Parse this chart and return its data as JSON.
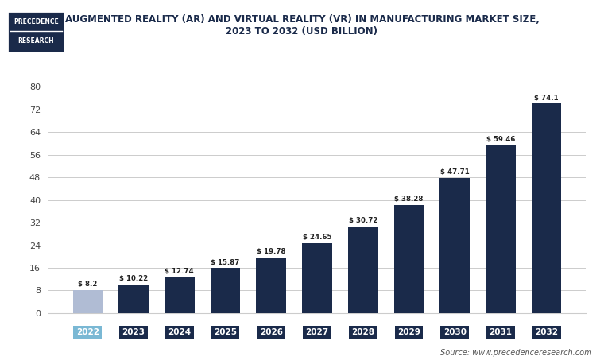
{
  "years": [
    "2022",
    "2023",
    "2024",
    "2025",
    "2026",
    "2027",
    "2028",
    "2029",
    "2030",
    "2031",
    "2032"
  ],
  "values": [
    8.2,
    10.22,
    12.74,
    15.87,
    19.78,
    24.65,
    30.72,
    38.28,
    47.71,
    59.46,
    74.1
  ],
  "bar_colors": [
    "#b0bcd4",
    "#1a2a4a",
    "#1a2a4a",
    "#1a2a4a",
    "#1a2a4a",
    "#1a2a4a",
    "#1a2a4a",
    "#1a2a4a",
    "#1a2a4a",
    "#1a2a4a",
    "#1a2a4a"
  ],
  "xtick_bg_colors": [
    "#7ab8d4",
    "#1a2a4a",
    "#1a2a4a",
    "#1a2a4a",
    "#1a2a4a",
    "#1a2a4a",
    "#1a2a4a",
    "#1a2a4a",
    "#1a2a4a",
    "#1a2a4a",
    "#1a2a4a"
  ],
  "title_line1": "AUGMENTED REALITY (AR) AND VIRTUAL REALITY (VR) IN MANUFACTURING MARKET SIZE,",
  "title_line2": "2023 TO 2032 (USD BILLION)",
  "yticks": [
    0,
    8,
    16,
    24,
    32,
    40,
    48,
    56,
    64,
    72,
    80
  ],
  "ytick_labels": [
    "0",
    "8",
    "16",
    "24",
    "32",
    "40",
    "48",
    "56",
    "64",
    "72",
    "80"
  ],
  "ylim": [
    0,
    85
  ],
  "source_text": "Source: www.precedenceresearch.com",
  "bg_color": "#ffffff",
  "grid_color": "#cccccc",
  "title_color": "#1a2a4a",
  "bar_label_color": "#222222",
  "logo_bg_color": "#1a2a4a",
  "logo_text_color": "#ffffff",
  "logo_line1": "PRECEDENCE",
  "logo_line2": "RESEARCH"
}
